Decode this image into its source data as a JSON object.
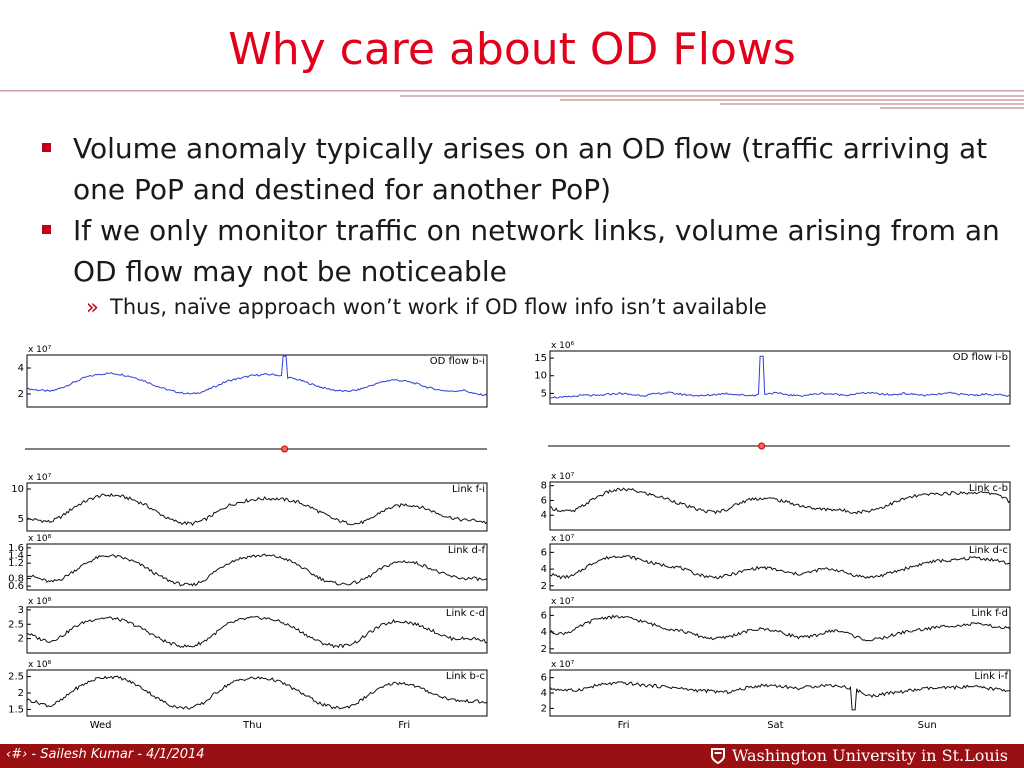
{
  "slide": {
    "title": "Why care about OD Flows",
    "bullets": [
      {
        "text": "Volume anomaly typically arises on an OD flow (traffic arriving at one PoP and destined for another PoP)"
      },
      {
        "text": "If we only monitor traffic on network links, volume arising from an OD flow may not be noticeable"
      }
    ],
    "sub_bullet": {
      "marker": "»",
      "text": "Thus, naïve approach won’t work if OD flow info isn’t available"
    }
  },
  "footer": {
    "left": "‹#› - Sailesh Kumar - 4/1/2014",
    "right": "Washington University in St.Louis",
    "bg_color": "#9a0f11"
  },
  "colors": {
    "title": "#e3001b",
    "bullet": "#c0001a",
    "od_series": "#2f3fd6",
    "link_series": "#111111"
  },
  "chart_data": [
    {
      "type": "line",
      "title": "OD flow b-i",
      "scale_label": "x 10⁷",
      "ylim": [
        1,
        5
      ],
      "ticks": [
        2,
        4
      ],
      "color": "#2f3fd6",
      "x_ticks": [
        "Wed",
        "Thu",
        "Fri"
      ],
      "spike": {
        "x": 0.56,
        "value": 4.9
      },
      "anomaly_marker": {
        "x": 0.56
      },
      "values": [
        2.4,
        2.3,
        2.2,
        2.5,
        2.9,
        3.3,
        3.5,
        3.6,
        3.5,
        3.3,
        3.0,
        2.6,
        2.3,
        2.1,
        2.0,
        2.2,
        2.6,
        3.0,
        3.2,
        3.4,
        3.5,
        3.5,
        3.3,
        3.1,
        2.8,
        2.5,
        2.3,
        2.2,
        2.3,
        2.6,
        2.9,
        3.1,
        3.0,
        2.8,
        2.5,
        2.3,
        2.2,
        2.3,
        2.0,
        1.9
      ]
    },
    {
      "type": "line",
      "title": "Link f-i",
      "scale_label": "x 10⁷",
      "ylim": [
        3,
        11
      ],
      "ticks": [
        5,
        10
      ],
      "color": "#111111",
      "values": [
        5.0,
        4.8,
        4.5,
        5.5,
        7.0,
        8.0,
        8.8,
        9.0,
        8.8,
        8.2,
        7.4,
        6.2,
        5.0,
        4.4,
        4.2,
        4.8,
        6.0,
        7.2,
        7.8,
        8.2,
        8.4,
        8.4,
        8.2,
        7.8,
        7.0,
        6.0,
        5.0,
        4.4,
        4.2,
        4.8,
        6.2,
        7.0,
        7.4,
        7.2,
        6.6,
        5.8,
        5.2,
        4.8,
        4.8,
        4.4
      ]
    },
    {
      "type": "line",
      "title": "Link d-f",
      "scale_label": "x 10⁸",
      "ylim": [
        0.5,
        1.7
      ],
      "ticks": [
        0.6,
        0.8,
        1.2,
        1.4,
        1.6
      ],
      "color": "#111111",
      "values": [
        0.9,
        0.8,
        0.7,
        0.8,
        1.0,
        1.2,
        1.35,
        1.4,
        1.35,
        1.25,
        1.1,
        0.9,
        0.75,
        0.65,
        0.62,
        0.75,
        1.0,
        1.2,
        1.32,
        1.38,
        1.4,
        1.38,
        1.3,
        1.15,
        0.95,
        0.78,
        0.68,
        0.65,
        0.7,
        0.85,
        1.05,
        1.2,
        1.25,
        1.2,
        1.1,
        0.95,
        0.85,
        0.8,
        0.8,
        0.75
      ]
    },
    {
      "type": "line",
      "title": "Link c-d",
      "scale_label": "x 10⁸",
      "ylim": [
        1.5,
        3.1
      ],
      "ticks": [
        2,
        2.5,
        3
      ],
      "color": "#111111",
      "values": [
        2.2,
        2.0,
        1.9,
        2.1,
        2.4,
        2.6,
        2.7,
        2.72,
        2.65,
        2.5,
        2.3,
        2.05,
        1.85,
        1.75,
        1.72,
        1.9,
        2.2,
        2.5,
        2.65,
        2.72,
        2.72,
        2.65,
        2.5,
        2.3,
        2.05,
        1.85,
        1.75,
        1.75,
        1.9,
        2.2,
        2.45,
        2.6,
        2.6,
        2.5,
        2.35,
        2.15,
        2.0,
        2.0,
        2.0,
        1.9
      ]
    },
    {
      "type": "line",
      "title": "Link b-c",
      "scale_label": "x 10⁸",
      "ylim": [
        1.3,
        2.7
      ],
      "ticks": [
        1.5,
        2,
        2.5
      ],
      "color": "#111111",
      "values": [
        1.8,
        1.7,
        1.6,
        1.8,
        2.1,
        2.3,
        2.45,
        2.5,
        2.45,
        2.3,
        2.1,
        1.85,
        1.65,
        1.55,
        1.55,
        1.7,
        2.0,
        2.25,
        2.4,
        2.45,
        2.45,
        2.4,
        2.25,
        2.05,
        1.85,
        1.65,
        1.55,
        1.55,
        1.7,
        1.95,
        2.15,
        2.3,
        2.3,
        2.2,
        2.05,
        1.9,
        1.8,
        1.75,
        1.75,
        1.7
      ]
    },
    {
      "type": "line",
      "title": "OD flow i-b",
      "scale_label": "x 10⁶",
      "ylim": [
        2,
        17
      ],
      "ticks": [
        5,
        10,
        15
      ],
      "color": "#2f3fd6",
      "x_ticks": [
        "Fri",
        "Sat",
        "Sun"
      ],
      "spike": {
        "x": 0.46,
        "value": 15.5
      },
      "anomaly_marker": {
        "x": 0.46
      },
      "values": [
        4.0,
        3.8,
        4.2,
        4.5,
        4.3,
        4.8,
        5.0,
        4.6,
        4.4,
        4.9,
        5.2,
        4.8,
        4.5,
        4.3,
        4.7,
        5.0,
        4.6,
        4.4,
        4.8,
        5.1,
        4.7,
        4.3,
        4.6,
        5.0,
        4.8,
        4.5,
        4.9,
        5.2,
        4.8,
        4.6,
        5.0,
        4.7,
        4.4,
        4.8,
        5.1,
        4.7,
        4.5,
        4.8,
        4.6,
        4.2
      ]
    },
    {
      "type": "line",
      "title": "Link c-b",
      "scale_label": "x 10⁷",
      "ylim": [
        2,
        8.5
      ],
      "ticks": [
        4,
        6,
        8
      ],
      "color": "#111111",
      "values": [
        5.0,
        4.6,
        4.5,
        5.5,
        6.5,
        7.2,
        7.5,
        7.4,
        7.0,
        6.6,
        6.2,
        5.6,
        5.0,
        4.6,
        4.4,
        4.8,
        5.6,
        6.2,
        6.3,
        6.2,
        5.8,
        5.4,
        5.0,
        4.8,
        4.8,
        4.6,
        4.4,
        4.6,
        5.0,
        5.6,
        6.2,
        6.6,
        6.8,
        6.9,
        7.0,
        7.0,
        7.1,
        7.0,
        6.9,
        5.8
      ]
    },
    {
      "type": "line",
      "title": "Link d-c",
      "scale_label": "x 10⁷",
      "ylim": [
        1.5,
        7
      ],
      "ticks": [
        2,
        4,
        6
      ],
      "color": "#111111",
      "values": [
        3.4,
        3.0,
        3.2,
        4.2,
        5.0,
        5.4,
        5.6,
        5.4,
        5.0,
        4.6,
        4.4,
        4.2,
        3.6,
        3.2,
        3.0,
        3.2,
        3.6,
        4.0,
        4.2,
        4.0,
        3.6,
        3.4,
        3.6,
        4.0,
        4.0,
        3.6,
        3.2,
        3.0,
        3.2,
        3.6,
        4.0,
        4.4,
        4.8,
        5.0,
        5.0,
        5.2,
        5.4,
        5.2,
        5.0,
        4.6
      ]
    },
    {
      "type": "line",
      "title": "Link f-d",
      "scale_label": "x 10⁷",
      "ylim": [
        1.5,
        7
      ],
      "ticks": [
        2,
        4,
        6
      ],
      "color": "#111111",
      "values": [
        4.0,
        3.8,
        4.2,
        5.0,
        5.6,
        5.8,
        5.8,
        5.6,
        5.2,
        4.8,
        4.4,
        4.2,
        3.8,
        3.4,
        3.2,
        3.4,
        3.8,
        4.2,
        4.4,
        4.2,
        3.8,
        3.4,
        3.4,
        3.8,
        4.2,
        4.0,
        3.4,
        3.0,
        3.2,
        3.6,
        4.0,
        4.2,
        4.4,
        4.6,
        4.8,
        4.8,
        5.0,
        4.8,
        4.6,
        4.4
      ]
    },
    {
      "type": "line",
      "title": "Link i-f",
      "scale_label": "x 10⁷",
      "ylim": [
        1,
        7
      ],
      "ticks": [
        2,
        4,
        6
      ],
      "color": "#111111",
      "dip": {
        "x": 0.66,
        "value": 1.8
      },
      "values": [
        4.6,
        4.4,
        4.3,
        4.6,
        5.0,
        5.2,
        5.3,
        5.2,
        5.0,
        4.9,
        4.8,
        4.6,
        4.4,
        4.3,
        4.2,
        4.1,
        4.4,
        4.8,
        5.0,
        5.0,
        4.8,
        4.6,
        4.8,
        5.0,
        5.0,
        4.8,
        4.4,
        3.6,
        3.8,
        4.0,
        4.2,
        4.4,
        4.6,
        4.6,
        4.7,
        4.8,
        4.8,
        4.6,
        4.5,
        4.3
      ]
    }
  ]
}
